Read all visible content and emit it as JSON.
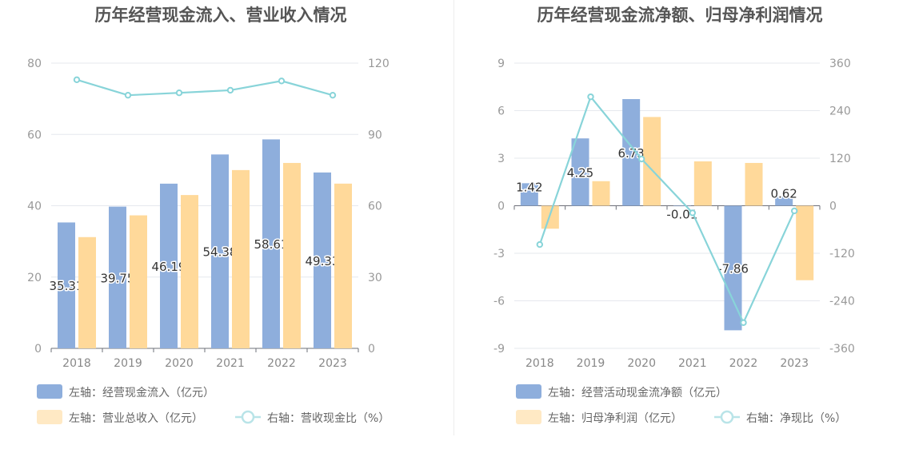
{
  "chart_data": [
    {
      "type": "bar",
      "title": "历年经营现金流入、营业收入情况",
      "categories": [
        "2018",
        "2019",
        "2020",
        "2021",
        "2022",
        "2023"
      ],
      "left_axis": {
        "min": 0,
        "max": 80,
        "ticks": [
          "0",
          "20",
          "40",
          "60",
          "80"
        ]
      },
      "right_axis": {
        "min": 0,
        "max": 120,
        "ticks": [
          "0",
          "30",
          "60",
          "90",
          "120"
        ]
      },
      "series": [
        {
          "name": "左轴：经营现金流入（亿元）",
          "type": "bar",
          "axis": "left",
          "color": "#8eaedc",
          "values": [
            35.31,
            39.75,
            46.19,
            54.38,
            58.61,
            49.33
          ],
          "labels": [
            "35.31",
            "39.75",
            "46.19",
            "54.38",
            "58.61",
            "49.33"
          ]
        },
        {
          "name": "左轴：营业总收入（亿元）",
          "type": "bar",
          "axis": "left",
          "color": "#ffd99a",
          "values": [
            31.2,
            37.3,
            43.0,
            50.0,
            52.0,
            46.2
          ]
        },
        {
          "name": "右轴：营收现金比（%）",
          "type": "line",
          "axis": "right",
          "color": "#88d4d9",
          "values": [
            113.0,
            106.5,
            107.5,
            108.6,
            112.5,
            106.5
          ]
        }
      ],
      "legend_position": "bottom-left",
      "grid": true
    },
    {
      "type": "bar",
      "title": "历年经营现金流净额、归母净利润情况",
      "categories": [
        "2018",
        "2019",
        "2020",
        "2021",
        "2022",
        "2023"
      ],
      "left_axis": {
        "min": -9,
        "max": 9,
        "ticks": [
          "-9",
          "-6",
          "-3",
          "0",
          "3",
          "6",
          "9"
        ]
      },
      "right_axis": {
        "min": -360,
        "max": 360,
        "ticks": [
          "-360",
          "-240",
          "-120",
          "0",
          "120",
          "240",
          "360"
        ]
      },
      "series": [
        {
          "name": "左轴：经营活动现金流净额（亿元）",
          "type": "bar",
          "axis": "left",
          "color": "#8eaedc",
          "values": [
            1.42,
            4.25,
            6.73,
            -0.01,
            -7.86,
            0.62
          ],
          "labels": [
            "1.42",
            "4.25",
            "6.73",
            "-0.01",
            "-7.86",
            "0.62"
          ]
        },
        {
          "name": "左轴：归母净利润（亿元）",
          "type": "bar",
          "axis": "left",
          "color": "#ffd99a",
          "values": [
            -1.45,
            1.55,
            5.6,
            2.8,
            2.7,
            -4.7
          ]
        },
        {
          "name": "右轴：净现比（%）",
          "type": "line",
          "axis": "right",
          "color": "#88d4d9",
          "values": [
            -98,
            275,
            118,
            -18,
            -295,
            -13
          ]
        }
      ],
      "legend_position": "bottom-left",
      "grid": true
    }
  ]
}
